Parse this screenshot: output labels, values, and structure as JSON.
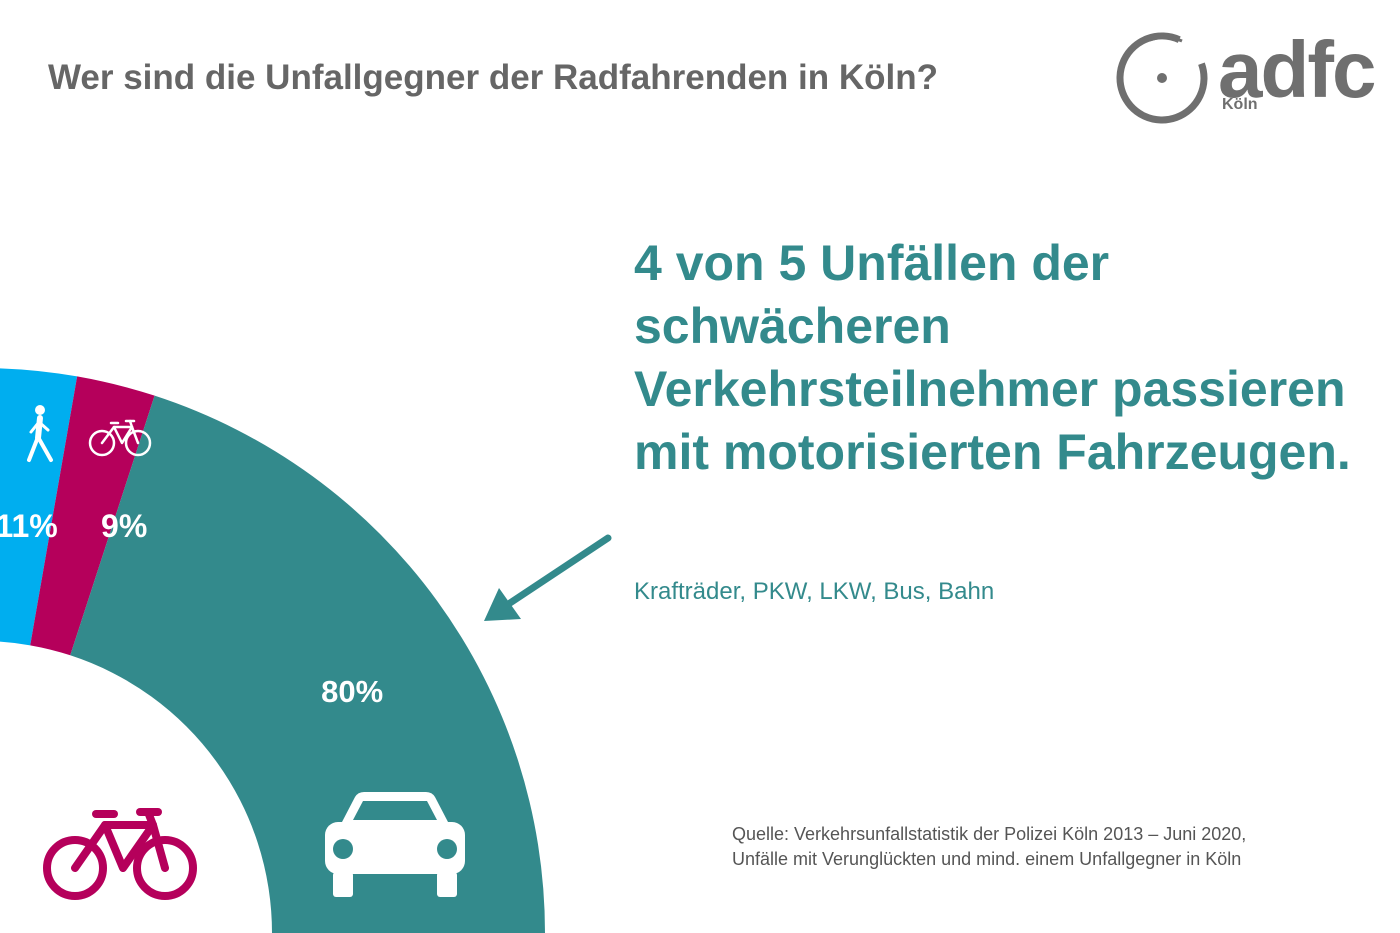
{
  "header": {
    "title": "Wer sind die Unfallgegner der Radfahrenden in Köln?"
  },
  "logo": {
    "word": "adfc",
    "city": "Köln",
    "color": "#6f6f6f"
  },
  "callout": {
    "headline": "4 von 5 Unfällen der schwächeren Verkehrsteilnehmer passieren mit motorisierten Fahrzeugen.",
    "subline": "Krafträder, PKW, LKW, Bus, Bahn",
    "color": "#338a8c"
  },
  "source": {
    "line1": "Quelle: Verkehrsunfallstatistik der Polizei Köln 2013 – Juni 2020,",
    "line2": "Unfälle mit Verunglückten und mind. einem Unfallgegner in Köln"
  },
  "chart_data": {
    "type": "pie",
    "variant": "quarter-donut",
    "center_icon": "bicycle-icon",
    "center_icon_color": "#b5005b",
    "slices": [
      {
        "value": 11,
        "label": "11%",
        "icon": "pedestrian-icon",
        "color": "#00aeef"
      },
      {
        "value": 9,
        "label": "9%",
        "icon": "bicycle-icon",
        "color": "#b5005b"
      },
      {
        "value": 80,
        "label": "80%",
        "icon": "car-icon",
        "color": "#338a8c"
      }
    ]
  }
}
